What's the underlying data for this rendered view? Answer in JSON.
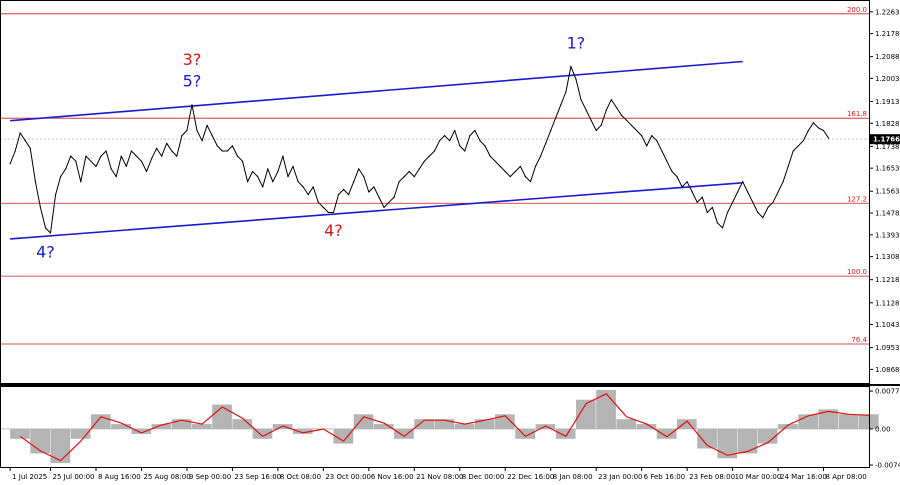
{
  "chart_data": [
    {
      "type": "line",
      "panel": "price",
      "title": "",
      "xlabel": "",
      "ylabel": "",
      "ylim": [
        1.0815,
        1.2305
      ],
      "y_ticks": [
        "1.2263",
        "1.2178",
        "1.2088",
        "1.2003",
        "1.1913",
        "1.1828",
        "1.1738",
        "1.1653",
        "1.1563",
        "1.1478",
        "1.1393",
        "1.1308",
        "1.1218",
        "1.1128",
        "1.1043",
        "1.0953",
        "1.0868"
      ],
      "current_price": "1.1766",
      "colors": {
        "price": "#000000",
        "channel": "#1a1ad4",
        "fib": "#d11b1b",
        "grid": "#c8c8c8",
        "frame": "#000000",
        "price_box": "#000000"
      },
      "fib_levels": [
        {
          "label": "200.0",
          "value": 1.2255
        },
        {
          "label": "161.8",
          "value": 1.1848
        },
        {
          "label": "127.2",
          "value": 1.1516
        },
        {
          "label": "100.0",
          "value": 1.1232
        },
        {
          "label": "76.4",
          "value": 1.0967
        }
      ],
      "channel_lines": [
        {
          "from": [
            0,
            1.1838
          ],
          "to": [
            145,
            1.2069
          ]
        },
        {
          "from": [
            0,
            1.1377
          ],
          "to": [
            145,
            1.1596
          ]
        }
      ],
      "wave_labels": [
        {
          "text": "4?",
          "x": 7,
          "y": 1.1352,
          "color": "#1a1ad4",
          "anchor": "below"
        },
        {
          "text": "3?",
          "x": 36,
          "y": 1.2055,
          "color": "#d11b1b",
          "anchor": "above"
        },
        {
          "text": "5?",
          "x": 36,
          "y": 1.1972,
          "color": "#1a1ad4",
          "anchor": "above"
        },
        {
          "text": "4?",
          "x": 64,
          "y": 1.1435,
          "color": "#d11b1b",
          "anchor": "below"
        },
        {
          "text": "1?",
          "x": 112,
          "y": 1.212,
          "color": "#1a1ad4",
          "anchor": "above"
        }
      ],
      "x_range": [
        -2,
        170
      ],
      "x_tick_labels": [
        {
          "x": 0,
          "label": "1 Jul 2025"
        },
        {
          "x": 8,
          "label": "25 Jul 00:00"
        },
        {
          "x": 17,
          "label": "8 Aug 16:00"
        },
        {
          "x": 26,
          "label": "25 Aug 08:00"
        },
        {
          "x": 35,
          "label": "9 Sep 00:00"
        },
        {
          "x": 44,
          "label": "23 Sep 16:00"
        },
        {
          "x": 53,
          "label": "8 Oct 08:00"
        },
        {
          "x": 62,
          "label": "23 Oct 00:00"
        },
        {
          "x": 71,
          "label": "6 Nov 16:00"
        },
        {
          "x": 80,
          "label": "21 Nov 08:00"
        },
        {
          "x": 89,
          "label": "8 Dec 00:00"
        },
        {
          "x": 98,
          "label": "22 Dec 16:00"
        },
        {
          "x": 107,
          "label": "8 Jan 08:00"
        },
        {
          "x": 116,
          "label": "23 Jan 00:00"
        },
        {
          "x": 125,
          "label": "6 Feb 16:00"
        },
        {
          "x": 134,
          "label": "23 Feb 08:00"
        },
        {
          "x": 143,
          "label": "10 Mar 00:00"
        },
        {
          "x": 152,
          "label": "24 Mar 16:00"
        },
        {
          "x": 161,
          "label": "8 Apr 08:00"
        }
      ],
      "x": [
        0,
        1,
        2,
        3,
        4,
        5,
        6,
        7,
        8,
        9,
        10,
        11,
        12,
        13,
        14,
        15,
        16,
        17,
        18,
        19,
        20,
        21,
        22,
        23,
        24,
        25,
        26,
        27,
        28,
        29,
        30,
        31,
        32,
        33,
        34,
        35,
        36,
        37,
        38,
        39,
        40,
        41,
        42,
        43,
        44,
        45,
        46,
        47,
        48,
        49,
        50,
        51,
        52,
        53,
        54,
        55,
        56,
        57,
        58,
        59,
        60,
        61,
        62,
        63,
        64,
        65,
        66,
        67,
        68,
        69,
        70,
        71,
        72,
        73,
        74,
        75,
        76,
        77,
        78,
        79,
        80,
        81,
        82,
        83,
        84,
        85,
        86,
        87,
        88,
        89,
        90,
        91,
        92,
        93,
        94,
        95,
        96,
        97,
        98,
        99,
        100,
        101,
        102,
        103,
        104,
        105,
        106,
        107,
        108,
        109,
        110,
        111,
        112,
        113,
        114,
        115,
        116,
        117,
        118,
        119,
        120,
        121,
        122,
        123,
        124,
        125,
        126,
        127,
        128,
        129,
        130,
        131,
        132,
        133,
        134,
        135,
        136,
        137,
        138,
        139,
        140,
        141,
        142,
        143,
        144,
        145,
        146,
        147,
        148,
        149,
        150,
        151,
        152,
        153,
        154,
        155,
        156,
        157,
        158,
        159,
        160,
        161,
        162
      ],
      "values": [
        1.167,
        1.172,
        1.179,
        1.176,
        1.173,
        1.16,
        1.15,
        1.142,
        1.14,
        1.155,
        1.162,
        1.165,
        1.17,
        1.168,
        1.16,
        1.17,
        1.168,
        1.166,
        1.17,
        1.172,
        1.165,
        1.162,
        1.17,
        1.166,
        1.172,
        1.17,
        1.168,
        1.164,
        1.169,
        1.173,
        1.17,
        1.175,
        1.172,
        1.17,
        1.178,
        1.18,
        1.19,
        1.18,
        1.176,
        1.182,
        1.178,
        1.174,
        1.172,
        1.172,
        1.174,
        1.17,
        1.168,
        1.16,
        1.164,
        1.162,
        1.158,
        1.165,
        1.16,
        1.164,
        1.17,
        1.162,
        1.166,
        1.16,
        1.158,
        1.155,
        1.158,
        1.152,
        1.15,
        1.148,
        1.148,
        1.155,
        1.157,
        1.155,
        1.16,
        1.165,
        1.162,
        1.156,
        1.158,
        1.154,
        1.15,
        1.152,
        1.154,
        1.16,
        1.162,
        1.164,
        1.162,
        1.165,
        1.168,
        1.17,
        1.172,
        1.176,
        1.178,
        1.176,
        1.18,
        1.174,
        1.172,
        1.178,
        1.18,
        1.176,
        1.174,
        1.17,
        1.168,
        1.166,
        1.164,
        1.162,
        1.164,
        1.166,
        1.162,
        1.16,
        1.166,
        1.17,
        1.175,
        1.18,
        1.185,
        1.19,
        1.195,
        1.205,
        1.2,
        1.192,
        1.188,
        1.184,
        1.18,
        1.182,
        1.188,
        1.192,
        1.189,
        1.186,
        1.184,
        1.182,
        1.18,
        1.178,
        1.174,
        1.178,
        1.176,
        1.172,
        1.168,
        1.164,
        1.162,
        1.158,
        1.16,
        1.156,
        1.152,
        1.154,
        1.148,
        1.15,
        1.144,
        1.142,
        1.148,
        1.152,
        1.156,
        1.16,
        1.156,
        1.152,
        1.148,
        1.146,
        1.15,
        1.152,
        1.156,
        1.16,
        1.166,
        1.172,
        1.174,
        1.176,
        1.18,
        1.183,
        1.181,
        1.18,
        1.177
      ]
    },
    {
      "type": "area",
      "panel": "oscillator",
      "title": "",
      "ylim": [
        -0.0078,
        0.0086
      ],
      "y_ticks": [
        {
          "value": 0.00776,
          "label": "0.00776"
        },
        {
          "value": 0.0,
          "label": "0.00"
        },
        {
          "value": -0.0074,
          "label": "-0.0074"
        }
      ],
      "colors": {
        "histogram": "#b4b4b4",
        "signal": "#e01010"
      },
      "x": [
        0,
        4,
        8,
        12,
        16,
        20,
        24,
        28,
        32,
        36,
        40,
        44,
        48,
        52,
        56,
        60,
        64,
        68,
        72,
        76,
        80,
        84,
        88,
        92,
        96,
        100,
        104,
        108,
        112,
        116,
        120,
        124,
        128,
        132,
        136,
        140,
        144,
        148,
        152,
        156,
        160,
        164,
        168
      ],
      "values": [
        -0.002,
        -0.005,
        -0.007,
        -0.002,
        0.003,
        0.001,
        -0.001,
        0.001,
        0.002,
        0.001,
        0.005,
        0.002,
        -0.002,
        0.001,
        -0.001,
        0.0,
        -0.003,
        0.003,
        0.001,
        -0.002,
        0.002,
        0.002,
        0.001,
        0.002,
        0.003,
        -0.002,
        0.001,
        -0.002,
        0.006,
        0.008,
        0.002,
        0.001,
        -0.002,
        0.002,
        -0.004,
        -0.006,
        -0.005,
        -0.003,
        0.001,
        0.003,
        0.004,
        0.003,
        0.003
      ],
      "signal": [
        -0.0015,
        -0.0045,
        -0.0065,
        -0.0025,
        0.0025,
        0.0012,
        -0.0008,
        0.0008,
        0.0018,
        0.001,
        0.0045,
        0.0022,
        -0.0015,
        0.0006,
        -0.0008,
        0.0,
        -0.0025,
        0.0025,
        0.0012,
        -0.0015,
        0.0018,
        0.0018,
        0.001,
        0.0018,
        0.0027,
        -0.0015,
        0.0006,
        -0.0015,
        0.0052,
        0.0072,
        0.0025,
        0.001,
        -0.0016,
        0.0016,
        -0.0034,
        -0.0054,
        -0.0046,
        -0.0028,
        0.0008,
        0.0027,
        0.0036,
        0.003,
        0.0028
      ]
    }
  ]
}
